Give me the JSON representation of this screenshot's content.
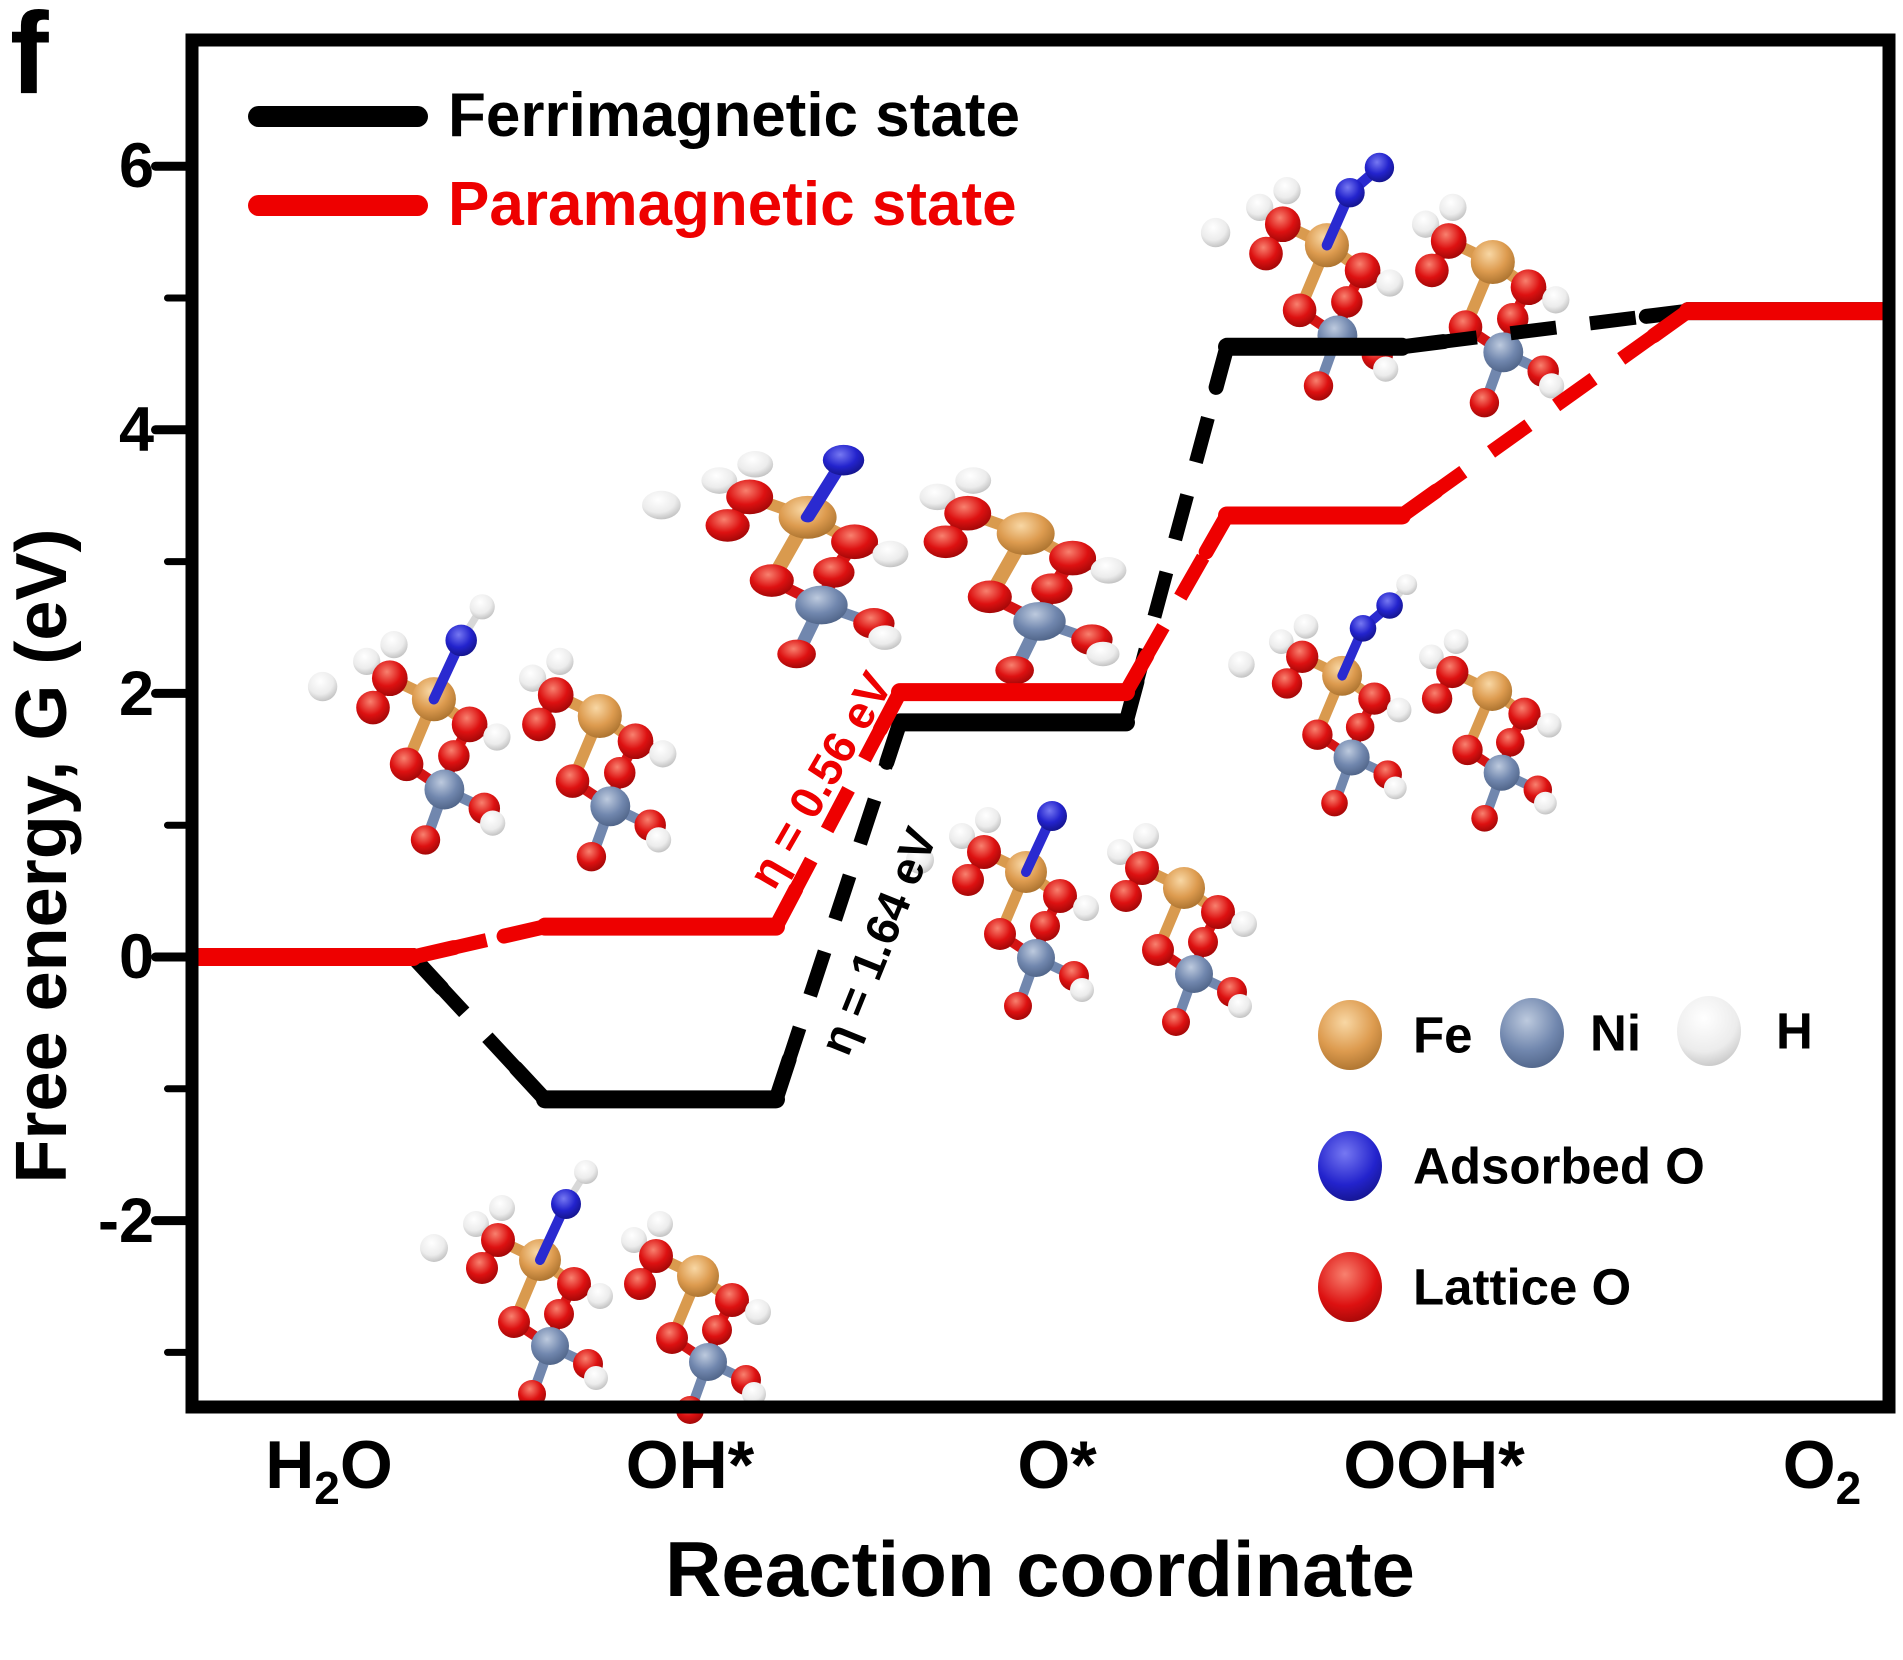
{
  "panel_label": "f",
  "plot_legend": {
    "items": [
      {
        "label": "Ferrimagnetic state",
        "color": "#000000"
      },
      {
        "label": "Paramagnetic state",
        "color": "#ee0000"
      }
    ]
  },
  "y_axis": {
    "title": "Free energy, G (eV)",
    "tick_labels": [
      "6",
      "4",
      "2",
      "0",
      "-2"
    ]
  },
  "x_axis": {
    "title": "Reaction coordinate",
    "tick_labels": [
      {
        "main": "H",
        "sub": "2",
        "tail": "O"
      },
      {
        "main": "OH*",
        "sub": "",
        "tail": ""
      },
      {
        "main": "O*",
        "sub": "",
        "tail": ""
      },
      {
        "main": "OOH*",
        "sub": "",
        "tail": ""
      },
      {
        "main": "O",
        "sub": "2",
        "tail": ""
      }
    ]
  },
  "annotations": {
    "paramagnetic_overpotential": "η = 0.56 eV",
    "ferrimagnetic_overpotential": "η = 1.64 eV"
  },
  "atom_legend": {
    "fe_label": "Fe",
    "ni_label": "Ni",
    "h_label": "H",
    "adsorbed_o_label": "Adsorbed O",
    "lattice_o_label": "Lattice O",
    "colors": {
      "fe": "#dd9b4f",
      "ni": "#7187ae",
      "h": "#ececec",
      "adsorbed_o": "#2323cd",
      "lattice_o": "#dd1111"
    }
  },
  "chart_data": {
    "type": "line",
    "subtype": "free-energy-step-diagram",
    "categories": [
      "H2O",
      "OH*",
      "O*",
      "OOH*",
      "O2"
    ],
    "series": [
      {
        "name": "Ferrimagnetic state",
        "color": "#000000",
        "values": [
          0,
          -1.08,
          1.78,
          4.63,
          4.9
        ]
      },
      {
        "name": "Paramagnetic state",
        "color": "#ee0000",
        "values": [
          0,
          0.23,
          2.01,
          3.35,
          4.9
        ]
      }
    ],
    "xlabel": "Reaction coordinate",
    "ylabel": "Free energy, G (eV)",
    "ylim": [
      -3.6,
      7.0
    ],
    "yticks_major": [
      6,
      4,
      2,
      0,
      -2
    ],
    "yticks_minor": [
      5,
      3,
      1,
      -1,
      -3
    ],
    "grid": false,
    "legend_position": "top-left",
    "annotations": [
      {
        "text": "η = 0.56 eV",
        "series": "Paramagnetic state",
        "between": [
          "OH*",
          "O*"
        ]
      },
      {
        "text": "η = 1.64 eV",
        "series": "Ferrimagnetic state",
        "between": [
          "OH*",
          "O*"
        ]
      }
    ]
  }
}
